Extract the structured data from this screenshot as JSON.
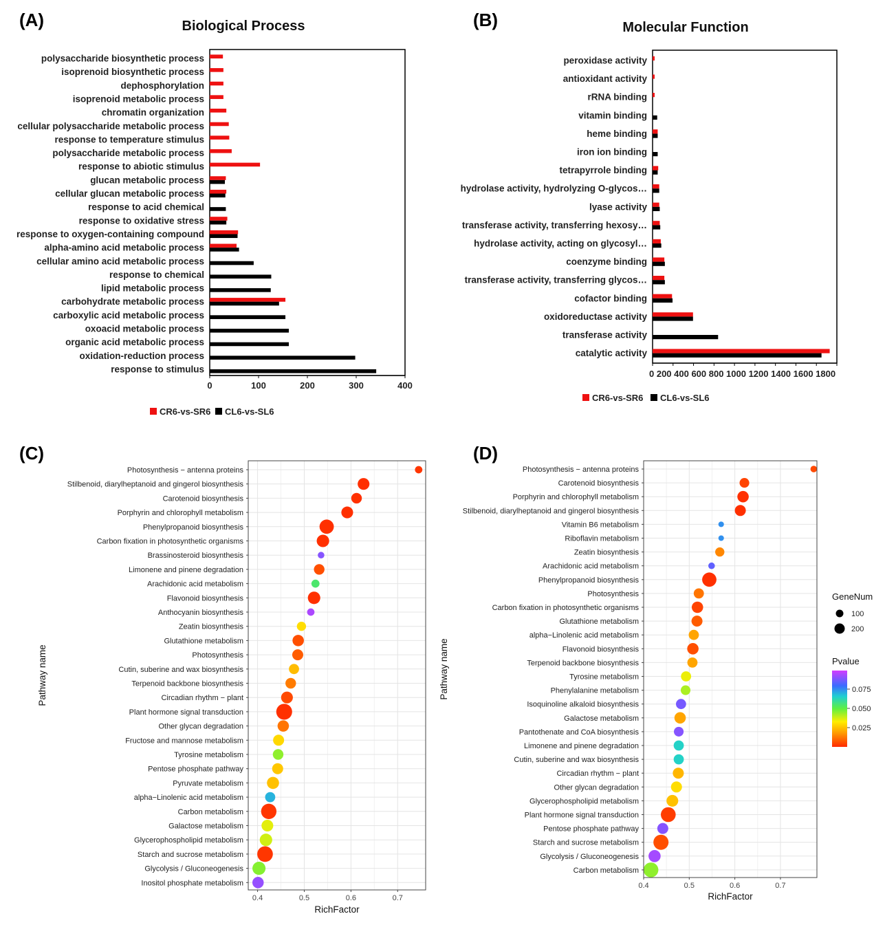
{
  "chart_data": [
    {
      "panel": "(A)",
      "type": "bar",
      "orientation": "horizontal",
      "title": "Biological Process",
      "xlabel": "",
      "ylabel": "",
      "xlim": [
        0,
        400
      ],
      "xticks": [
        0,
        100,
        200,
        300,
        400
      ],
      "categories": [
        "polysaccharide biosynthetic process",
        "isoprenoid biosynthetic process",
        "dephosphorylation",
        "isoprenoid metabolic process",
        "chromatin organization",
        "cellular polysaccharide metabolic process",
        "response to temperature stimulus",
        "polysaccharide metabolic process",
        "response to abiotic stimulus",
        "glucan metabolic process",
        "cellular glucan metabolic process",
        "response to acid chemical",
        "response to oxidative stress",
        "response to oxygen-containing compound",
        "alpha-amino acid metabolic process",
        "cellular amino acid metabolic process",
        "response to chemical",
        "lipid metabolic process",
        "carbohydrate metabolic process",
        "carboxylic acid metabolic process",
        "oxoacid metabolic process",
        "organic acid metabolic process",
        "oxidation-reduction process",
        "response to stimulus"
      ],
      "series": [
        {
          "name": "CR6-vs-SR6",
          "color": "#ee1111",
          "values": [
            27,
            28,
            28,
            28,
            34,
            39,
            40,
            45,
            103,
            33,
            34,
            0,
            36,
            58,
            55,
            0,
            0,
            0,
            155,
            0,
            0,
            0,
            0,
            0
          ]
        },
        {
          "name": "CL6-vs-SL6",
          "color": "#000000",
          "values": [
            0,
            0,
            0,
            0,
            0,
            0,
            0,
            0,
            0,
            31,
            32,
            33,
            34,
            57,
            60,
            90,
            126,
            125,
            142,
            155,
            162,
            162,
            298,
            341
          ]
        }
      ],
      "legend": "bottom"
    },
    {
      "panel": "(B)",
      "type": "bar",
      "orientation": "horizontal",
      "title": "Molecular Function",
      "xlabel": "",
      "ylabel": "",
      "xlim": [
        0,
        1800
      ],
      "xticks": [
        0,
        200,
        400,
        600,
        800,
        1000,
        1200,
        1400,
        1600,
        1800
      ],
      "xtick_labels": "0 200 400 600 800 1000 1200 1400 1600 1800",
      "categories": [
        "peroxidase activity",
        "antioxidant activity",
        "rRNA binding",
        "vitamin binding",
        "heme binding",
        "iron ion binding",
        "tetrapyrrole binding",
        "hydrolase activity, hydrolyzing O-glycos…",
        "lyase activity",
        "transferase activity, transferring hexosy…",
        "hydrolase activity, acting on glycosyl…",
        "coenzyme binding",
        "transferase activity, transferring glycos…",
        "cofactor binding",
        "oxidoreductase activity",
        "transferase activity",
        "catalytic activity"
      ],
      "series": [
        {
          "name": "CR6-vs-SR6",
          "color": "#ee1111",
          "values": [
            20,
            20,
            20,
            0,
            50,
            0,
            55,
            65,
            65,
            70,
            80,
            115,
            115,
            190,
            395,
            0,
            1730
          ]
        },
        {
          "name": "CL6-vs-SL6",
          "color": "#000000",
          "values": [
            0,
            0,
            0,
            45,
            50,
            50,
            50,
            65,
            70,
            75,
            85,
            120,
            120,
            195,
            395,
            640,
            1650
          ]
        }
      ],
      "legend": "bottom"
    },
    {
      "panel": "(C)",
      "type": "scatter",
      "xlabel": "RichFactor",
      "ylabel": "Pathway name",
      "xlim": [
        0.38,
        0.76
      ],
      "xticks": [
        0.4,
        0.5,
        0.6,
        0.7
      ],
      "pathways": [
        "Photosynthesis − antenna proteins",
        "Stilbenoid, diarylheptanoid and gingerol biosynthesis",
        "Carotenoid biosynthesis",
        "Porphyrin and chlorophyll metabolism",
        "Phenylpropanoid biosynthesis",
        "Carbon fixation in photosynthetic organisms",
        "Brassinosteroid biosynthesis",
        "Limonene and pinene degradation",
        "Arachidonic acid metabolism",
        "Flavonoid biosynthesis",
        "Anthocyanin biosynthesis",
        "Zeatin biosynthesis",
        "Glutathione metabolism",
        "Photosynthesis",
        "Cutin, suberine and wax biosynthesis",
        "Terpenoid backbone biosynthesis",
        "Circadian rhythm − plant",
        "Plant hormone signal transduction",
        "Other glycan degradation",
        "Fructose and mannose metabolism",
        "Tyrosine metabolism",
        "Pentose phosphate pathway",
        "Pyruvate metabolism",
        "alpha−Linolenic acid metabolism",
        "Carbon metabolism",
        "Galactose metabolism",
        "Glycerophospholipid metabolism",
        "Starch and sucrose metabolism",
        "Glycolysis / Gluconeogenesis",
        "Inositol phosphate metabolism"
      ],
      "rich_factor": [
        0.745,
        0.627,
        0.612,
        0.592,
        0.548,
        0.54,
        0.536,
        0.532,
        0.524,
        0.521,
        0.514,
        0.494,
        0.487,
        0.486,
        0.478,
        0.471,
        0.463,
        0.457,
        0.455,
        0.445,
        0.444,
        0.443,
        0.433,
        0.427,
        0.424,
        0.421,
        0.418,
        0.416,
        0.403,
        0.401
      ],
      "gene_num": [
        30,
        120,
        90,
        120,
        200,
        140,
        20,
        90,
        40,
        140,
        30,
        60,
        110,
        100,
        80,
        90,
        120,
        260,
        110,
        100,
        90,
        100,
        130,
        80,
        240,
        120,
        140,
        250,
        160,
        110
      ],
      "pvalue": [
        0.002,
        0.001,
        0.001,
        0.001,
        0.001,
        0.001,
        0.09,
        0.006,
        0.055,
        0.001,
        0.095,
        0.03,
        0.006,
        0.008,
        0.024,
        0.013,
        0.005,
        0.001,
        0.012,
        0.029,
        0.045,
        0.026,
        0.025,
        0.07,
        0.002,
        0.036,
        0.038,
        0.002,
        0.046,
        0.092
      ],
      "legend": "right (Pvalue colorbar, GeneNum sizes)"
    },
    {
      "panel": "(D)",
      "type": "scatter",
      "xlabel": "RichFactor",
      "ylabel": "Pathway name",
      "xlim": [
        0.4,
        0.78
      ],
      "xticks": [
        0.4,
        0.5,
        0.6,
        0.7
      ],
      "pathways": [
        "Photosynthesis − antenna proteins",
        "Carotenoid biosynthesis",
        "Porphyrin and chlorophyll metabolism",
        "Stilbenoid, diarylheptanoid and gingerol biosynthesis",
        "Vitamin B6 metabolism",
        "Riboflavin metabolism",
        "Zeatin biosynthesis",
        "Arachidonic acid metabolism",
        "Phenylpropanoid biosynthesis",
        "Photosynthesis",
        "Carbon fixation in photosynthetic organisms",
        "Glutathione metabolism",
        "alpha−Linolenic acid metabolism",
        "Flavonoid biosynthesis",
        "Terpenoid backbone biosynthesis",
        "Tyrosine metabolism",
        "Phenylalanine metabolism",
        "Isoquinoline alkaloid biosynthesis",
        "Galactose metabolism",
        "Pantothenate and CoA biosynthesis",
        "Limonene and pinene degradation",
        "Cutin, suberine and wax biosynthesis",
        "Circadian rhythm − plant",
        "Other glycan degradation",
        "Glycerophospholipid metabolism",
        "Plant hormone signal transduction",
        "Pentose phosphate pathway",
        "Starch and sucrose metabolism",
        "Glycolysis / Gluconeogenesis",
        "Carbon metabolism"
      ],
      "rich_factor": [
        0.773,
        0.621,
        0.618,
        0.612,
        0.57,
        0.57,
        0.567,
        0.549,
        0.544,
        0.521,
        0.518,
        0.517,
        0.51,
        0.508,
        0.507,
        0.493,
        0.492,
        0.482,
        0.48,
        0.477,
        0.477,
        0.477,
        0.476,
        0.472,
        0.463,
        0.454,
        0.442,
        0.438,
        0.424,
        0.416
      ],
      "gene_num": [
        20,
        70,
        110,
        100,
        10,
        10,
        60,
        20,
        200,
        80,
        110,
        100,
        80,
        110,
        80,
        80,
        70,
        80,
        110,
        70,
        80,
        80,
        100,
        100,
        120,
        220,
        100,
        230,
        130,
        220
      ],
      "pvalue": [
        0.005,
        0.004,
        0.001,
        0.001,
        0.075,
        0.075,
        0.015,
        0.085,
        0.001,
        0.012,
        0.004,
        0.008,
        0.02,
        0.006,
        0.02,
        0.035,
        0.042,
        0.088,
        0.02,
        0.09,
        0.065,
        0.065,
        0.023,
        0.03,
        0.025,
        0.003,
        0.09,
        0.006,
        0.094,
        0.045
      ],
      "legend": "right (Pvalue colorbar, GeneNum sizes)"
    }
  ],
  "legend_ab": {
    "series1": "CR6-vs-SR6",
    "series2": "CL6-vs-SL6"
  },
  "legend_cd": {
    "genenum_title": "GeneNum",
    "genenum_items": [
      "100",
      "200"
    ],
    "pvalue_title": "Pvalue",
    "pvalue_ticks": [
      "0.075",
      "0.050",
      "0.025"
    ]
  }
}
